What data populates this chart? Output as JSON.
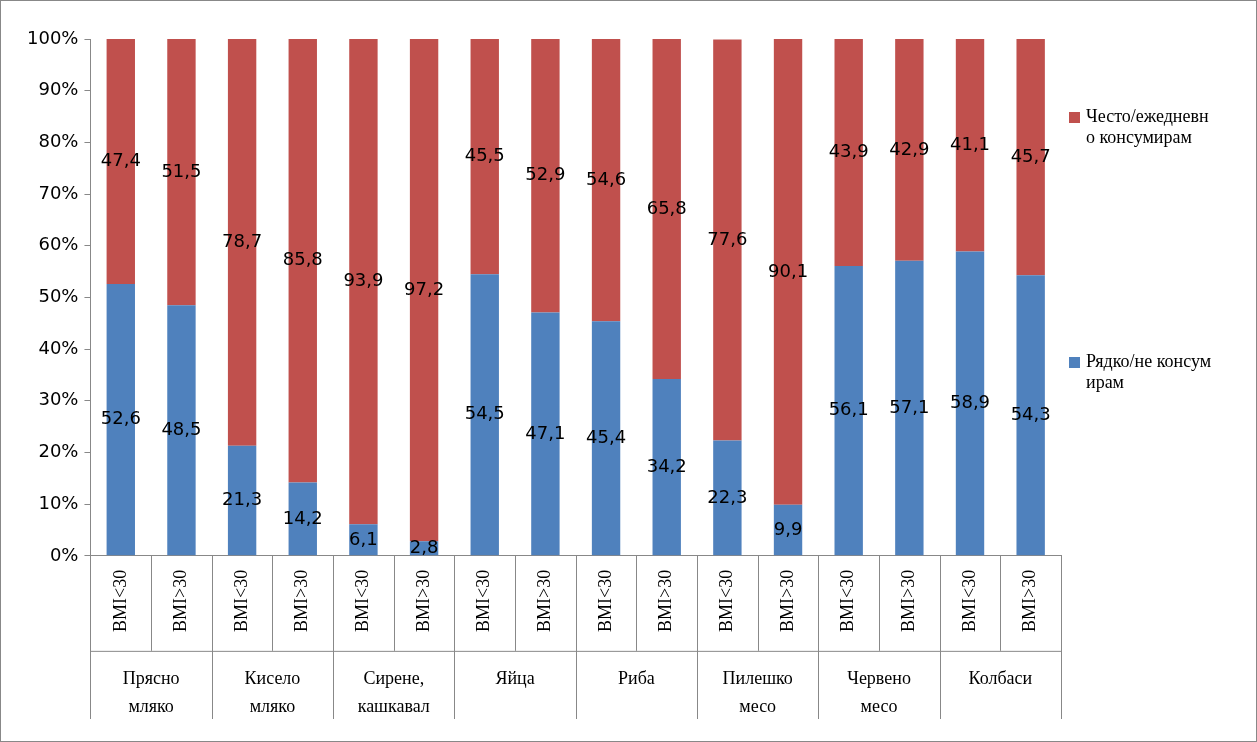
{
  "chart_data": {
    "type": "bar",
    "stacked": true,
    "categories": [
      "BMI<30",
      "BMI>30",
      "BMI<30",
      "BMI>30",
      "BMI<30",
      "BMI>30",
      "BMI<30",
      "BMI>30",
      "BMI<30",
      "BMI>30",
      "BMI<30",
      "BMI>30",
      "BMI<30",
      "BMI>30",
      "BMI<30",
      "BMI>30"
    ],
    "series": [
      {
        "name": "Рядко/не консумирам",
        "color": "#4f81bd",
        "values": [
          52.6,
          48.5,
          21.3,
          14.2,
          6.1,
          2.8,
          54.5,
          47.1,
          45.4,
          34.2,
          22.3,
          9.9,
          56.1,
          57.1,
          58.9,
          54.3
        ],
        "value_labels": [
          "52,6",
          "48,5",
          "21,3",
          "14,2",
          "6,1",
          "2,8",
          "54,5",
          "47,1",
          "45,4",
          "34,2",
          "22,3",
          "9,9",
          "56,1",
          "57,1",
          "58,9",
          "54,3"
        ]
      },
      {
        "name": "Често/ежедневно консумирам",
        "color": "#c0504d",
        "values": [
          47.4,
          51.5,
          78.7,
          85.8,
          93.9,
          97.2,
          45.5,
          52.9,
          54.6,
          65.8,
          77.6,
          90.1,
          43.9,
          42.9,
          41.1,
          45.7
        ],
        "value_labels": [
          "47,4",
          "51,5",
          "78,7",
          "85,8",
          "93,9",
          "97,2",
          "45,5",
          "52,9",
          "54,6",
          "65,8",
          "77,6",
          "90,1",
          "43,9",
          "42,9",
          "41,1",
          "45,7"
        ]
      }
    ],
    "annotations": [
      "Прясно мляко",
      "Кисело мляко",
      "Сирене, кашкавал",
      "Яйца",
      "Риба",
      "Пилешко месо",
      "Червено месо",
      "Колбаси"
    ],
    "ylim": [
      0,
      100
    ],
    "yticks": [
      {
        "value": 0,
        "label": "0%"
      },
      {
        "value": 10,
        "label": "10%"
      },
      {
        "value": 20,
        "label": "20%"
      },
      {
        "value": 30,
        "label": "30%"
      },
      {
        "value": 40,
        "label": "40%"
      },
      {
        "value": 50,
        "label": "50%"
      },
      {
        "value": 60,
        "label": "60%"
      },
      {
        "value": 70,
        "label": "70%"
      },
      {
        "value": 80,
        "label": "80%"
      },
      {
        "value": 90,
        "label": "90%"
      },
      {
        "value": 100,
        "label": "100%"
      }
    ],
    "grid": false,
    "legend": "right"
  }
}
